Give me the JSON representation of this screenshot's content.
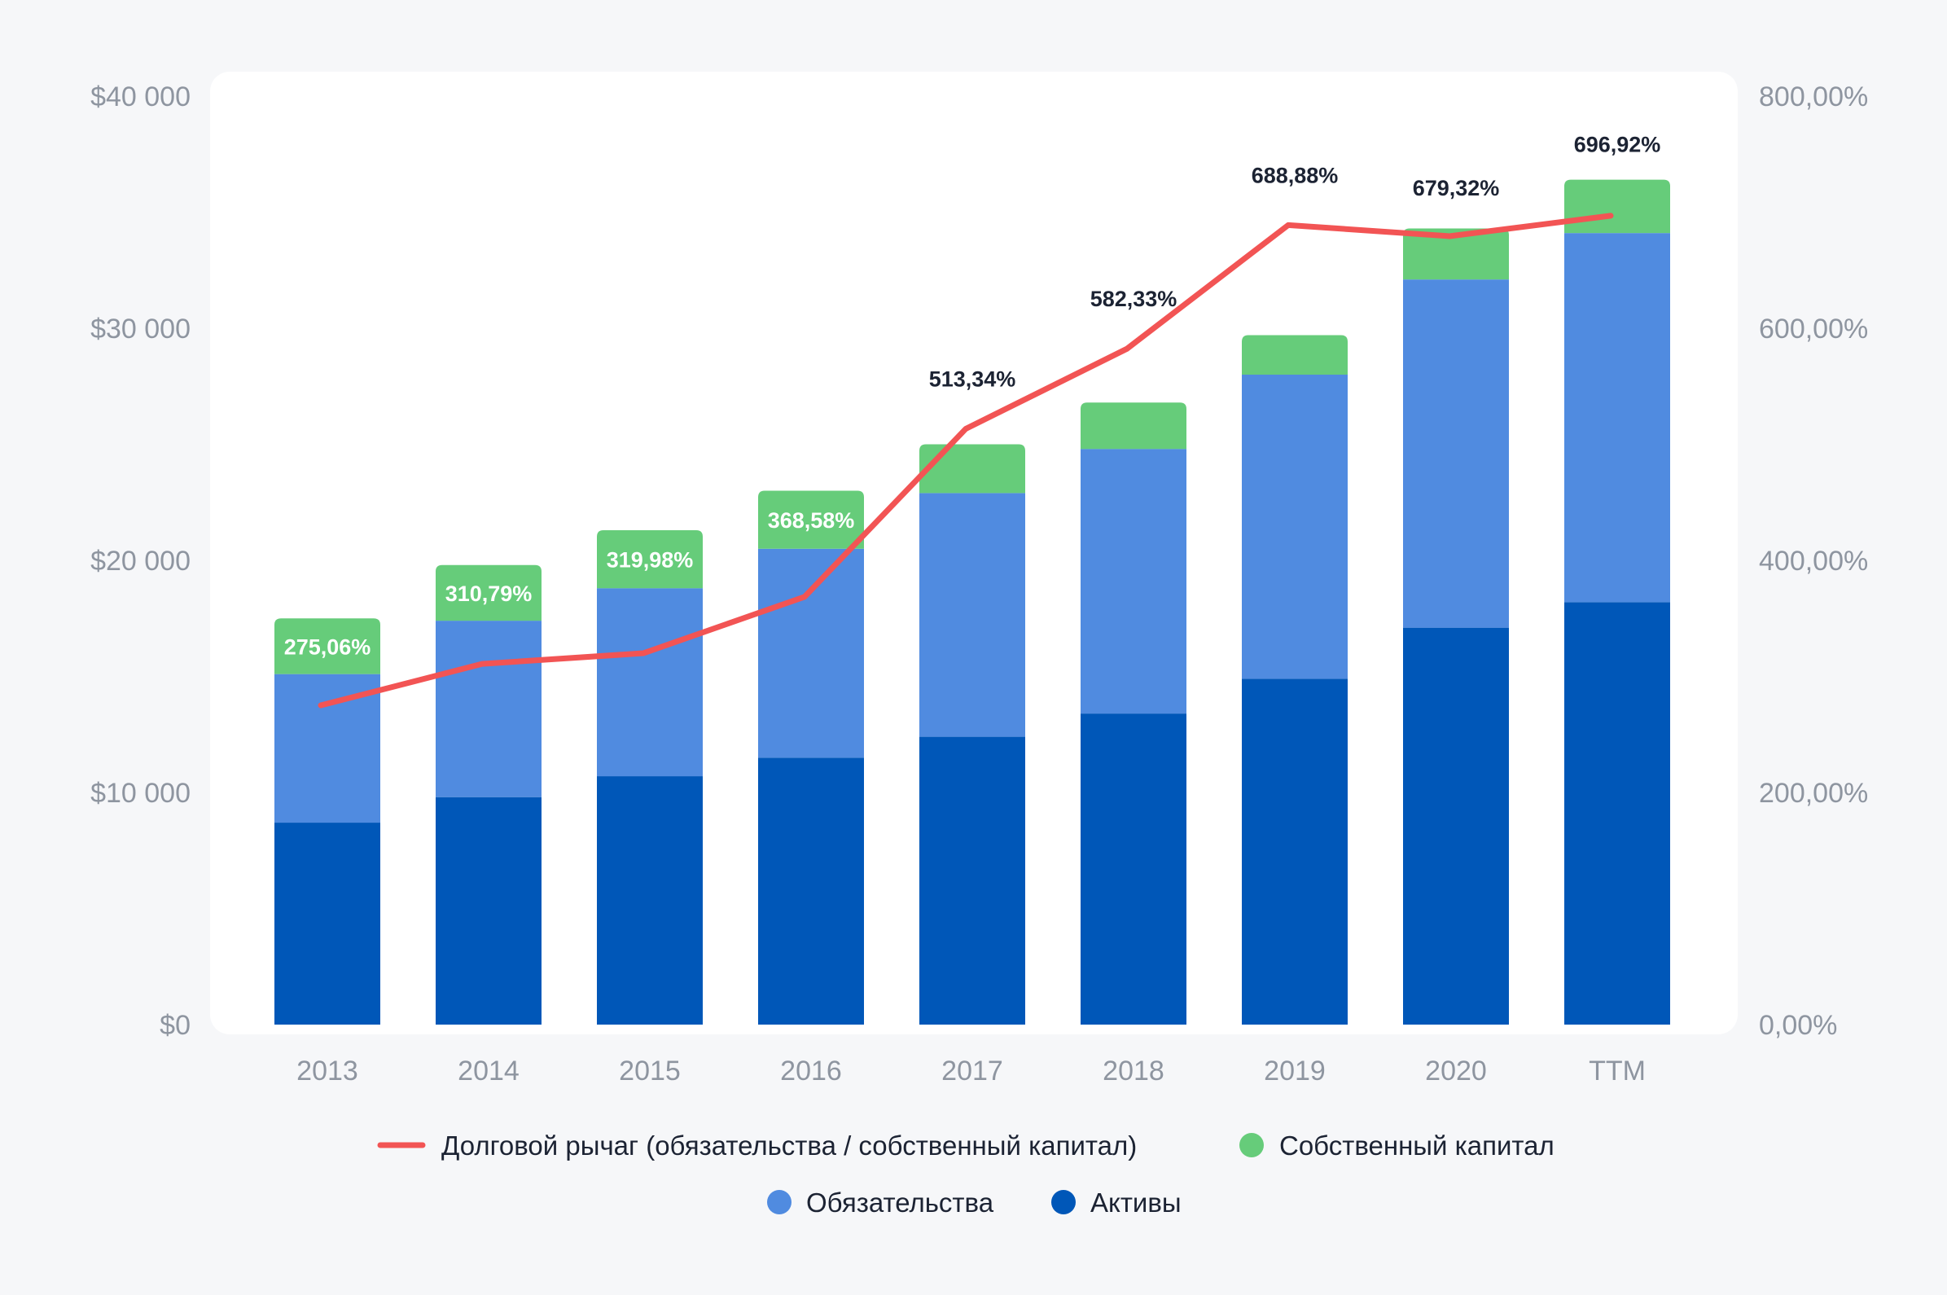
{
  "chart_data": {
    "type": "bar",
    "stacked": true,
    "categories": [
      "2013",
      "2014",
      "2015",
      "2016",
      "2017",
      "2018",
      "2019",
      "2020",
      "TTM"
    ],
    "series": [
      {
        "name": "Активы",
        "kind": "bar",
        "color": "#0057b8",
        "values": [
          8700,
          9800,
          10700,
          11500,
          12400,
          13400,
          14900,
          17100,
          18200
        ]
      },
      {
        "name": "Обязательства",
        "kind": "bar",
        "color": "#508be0",
        "values": [
          6400,
          7600,
          8100,
          9000,
          10500,
          11400,
          13100,
          15000,
          15900
        ]
      },
      {
        "name": "Собственный капитал",
        "kind": "bar",
        "color": "#66cc7a",
        "values": [
          2400,
          2400,
          2500,
          2500,
          2100,
          2000,
          1700,
          2200,
          2300
        ]
      },
      {
        "name": "Долговой рычаг (обязательства / собственный капитал)",
        "kind": "line",
        "axis": "right",
        "color": "#f25454",
        "values": [
          275.06,
          310.79,
          319.98,
          368.58,
          513.34,
          582.33,
          688.88,
          679.32,
          696.92
        ]
      }
    ],
    "data_labels": [
      "275,06%",
      "310,79%",
      "319,98%",
      "368,58%",
      "513,34%",
      "582,33%",
      "688,88%",
      "679,32%",
      "696,92%"
    ],
    "y_left": {
      "ylim": [
        0,
        40000
      ],
      "ticks": [
        "$0",
        "$10 000",
        "$20 000",
        "$30 000",
        "$40 000"
      ]
    },
    "y_right": {
      "ylim": [
        0,
        800
      ],
      "ticks": [
        "0,00%",
        "200,00%",
        "400,00%",
        "600,00%",
        "800,00%"
      ]
    },
    "title": "",
    "xlabel": "",
    "ylabel": "",
    "grid": false,
    "legend_position": "bottom",
    "legend": {
      "row1": [
        "Долговой рычаг (обязательства / собственный капитал)",
        "Собственный капитал"
      ],
      "row2": [
        "Обязательства",
        "Активы"
      ]
    }
  },
  "colors": {
    "background": "#f6f7f9",
    "plot_background": "#ffffff",
    "axis_text": "#8e95a0",
    "label_dark": "#1c2333",
    "label_light": "#ffffff"
  }
}
